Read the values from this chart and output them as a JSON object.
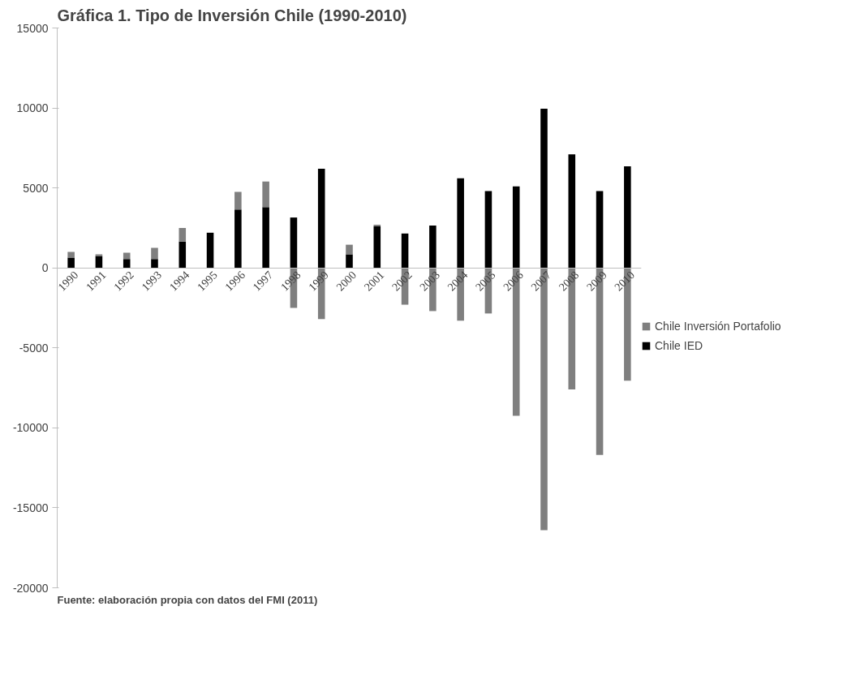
{
  "chart_data": {
    "type": "bar",
    "title": "Gráfica 1.  Tipo de Inversión Chile (1990-2010)",
    "categories": [
      "1990",
      "1991",
      "1992",
      "1993",
      "1994",
      "1995",
      "1996",
      "1997",
      "1998",
      "1999",
      "2000",
      "2001",
      "2002",
      "2003",
      "2004",
      "2005",
      "2006",
      "2007",
      "2008",
      "2009",
      "2010"
    ],
    "stacked": true,
    "series": [
      {
        "name": "Chile IED",
        "color": "#000000",
        "values": [
          650,
          750,
          550,
          550,
          1650,
          2200,
          3650,
          3800,
          3150,
          6200,
          850,
          2600,
          2150,
          2650,
          5600,
          4800,
          5100,
          9950,
          7100,
          4800,
          6350
        ]
      },
      {
        "name": "Chile Inversión Portafolio",
        "color": "#7f7f7f",
        "values": [
          350,
          100,
          400,
          700,
          850,
          0,
          1100,
          1600,
          -2500,
          -3200,
          600,
          100,
          -2300,
          -2700,
          -3300,
          -2850,
          -9250,
          -16400,
          -7600,
          -11700,
          -7050
        ]
      }
    ],
    "ylim": [
      -20000,
      15000
    ],
    "yticks": [
      -20000,
      -15000,
      -10000,
      -5000,
      0,
      5000,
      10000,
      15000
    ],
    "grid": false,
    "legend": "right",
    "annotations": [
      "Fuente: elaboración propia con datos del FMI (2011)"
    ]
  }
}
